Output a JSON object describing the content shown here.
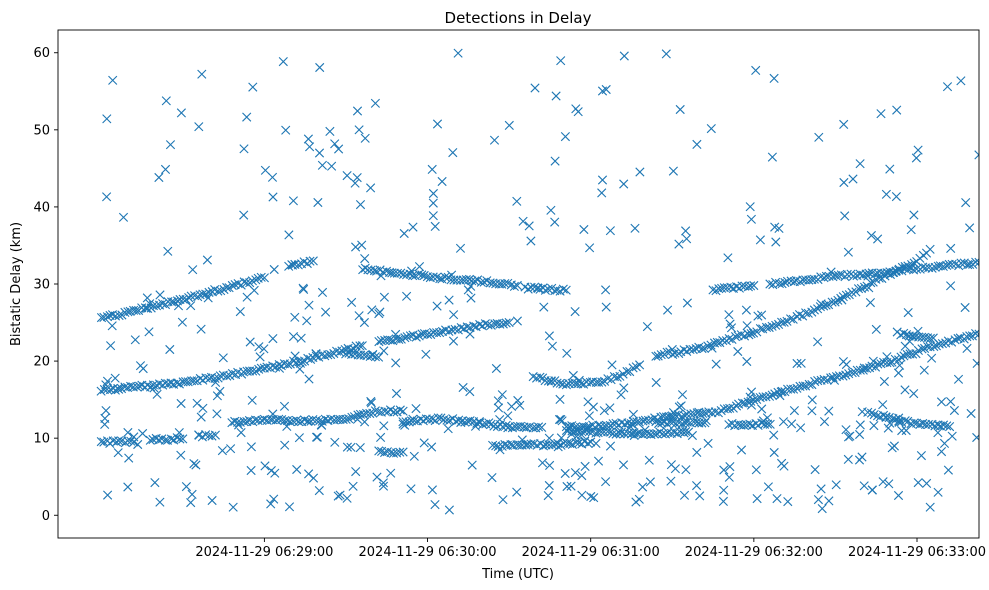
{
  "chart_data": {
    "type": "scatter",
    "title": "Detections in Delay",
    "xlabel": "Time (UTC)",
    "ylabel": "Bistatic Delay (km)",
    "marker": "x",
    "color": "#1f77b4",
    "x_unit": "minutes after 2024-11-29 06:28:00 UTC",
    "xlim": [
      -0.265,
      5.38
    ],
    "ylim": [
      -2.95,
      62.95
    ],
    "x_ticks": [
      {
        "value": 1,
        "label": "2024-11-29 06:29:00"
      },
      {
        "value": 2,
        "label": "2024-11-29 06:30:00"
      },
      {
        "value": 3,
        "label": "2024-11-29 06:31:00"
      },
      {
        "value": 4,
        "label": "2024-11-29 06:32:00"
      },
      {
        "value": 5,
        "label": "2024-11-29 06:33:00"
      }
    ],
    "y_ticks": [
      0,
      10,
      20,
      30,
      40,
      50,
      60
    ],
    "tracks": [
      {
        "name": "track-a",
        "points": [
          [
            0,
            25.5
          ],
          [
            0.5,
            28.0
          ],
          [
            1.0,
            30.8
          ]
        ]
      },
      {
        "name": "track-b",
        "points": [
          [
            1.15,
            32.3
          ],
          [
            1.3,
            33.0
          ]
        ]
      },
      {
        "name": "track-c",
        "points": [
          [
            1.6,
            32.0
          ],
          [
            2.0,
            31.0
          ],
          [
            2.4,
            30.2
          ],
          [
            2.55,
            29.8
          ]
        ]
      },
      {
        "name": "track-d",
        "points": [
          [
            2.6,
            29.5
          ],
          [
            2.85,
            29.2
          ]
        ]
      },
      {
        "name": "track-e",
        "points": [
          [
            0,
            16.2
          ],
          [
            0.5,
            17.2
          ],
          [
            1.0,
            19.0
          ],
          [
            1.3,
            20.4
          ],
          [
            1.6,
            22.0
          ]
        ]
      },
      {
        "name": "track-f",
        "points": [
          [
            1.5,
            21.0
          ],
          [
            1.7,
            20.5
          ]
        ]
      },
      {
        "name": "track-g",
        "points": [
          [
            1.7,
            22.5
          ],
          [
            2.0,
            23.5
          ],
          [
            2.3,
            24.6
          ],
          [
            2.5,
            25.0
          ]
        ]
      },
      {
        "name": "track-h",
        "points": [
          [
            2.65,
            18.0
          ],
          [
            2.85,
            17.0
          ],
          [
            3.05,
            17.2
          ],
          [
            3.2,
            18.3
          ],
          [
            3.3,
            19.5
          ]
        ]
      },
      {
        "name": "track-i",
        "points": [
          [
            3.5,
            21.0
          ],
          [
            3.7,
            21.8
          ],
          [
            4.0,
            23.8
          ],
          [
            4.3,
            26.0
          ],
          [
            4.55,
            28.3
          ],
          [
            4.75,
            30.5
          ],
          [
            5.0,
            33.0
          ],
          [
            5.08,
            34.5
          ]
        ]
      },
      {
        "name": "track-j",
        "points": [
          [
            3.75,
            29.2
          ],
          [
            4.0,
            29.8
          ]
        ]
      },
      {
        "name": "track-k",
        "points": [
          [
            4.1,
            30.0
          ],
          [
            4.5,
            31.0
          ],
          [
            4.8,
            31.5
          ],
          [
            5.0,
            32.0
          ],
          [
            5.38,
            32.8
          ]
        ]
      },
      {
        "name": "track-l",
        "points": [
          [
            0,
            9.5
          ],
          [
            0.2,
            9.5
          ]
        ]
      },
      {
        "name": "track-m",
        "points": [
          [
            0.3,
            9.9
          ],
          [
            0.5,
            9.9
          ]
        ]
      },
      {
        "name": "track-n",
        "points": [
          [
            0.6,
            10.3
          ],
          [
            0.7,
            10.4
          ]
        ]
      },
      {
        "name": "track-o",
        "points": [
          [
            0.8,
            12.0
          ],
          [
            1.0,
            12.3
          ],
          [
            1.3,
            12.3
          ],
          [
            1.5,
            12.5
          ],
          [
            1.7,
            13.5
          ],
          [
            1.85,
            13.5
          ]
        ]
      },
      {
        "name": "track-p",
        "points": [
          [
            1.85,
            12.2
          ],
          [
            2.1,
            12.5
          ],
          [
            2.3,
            12.0
          ],
          [
            2.5,
            11.5
          ],
          [
            2.7,
            11.4
          ]
        ]
      },
      {
        "name": "track-q",
        "points": [
          [
            1.7,
            8.2
          ],
          [
            1.85,
            8.2
          ]
        ]
      },
      {
        "name": "track-r",
        "points": [
          [
            2.4,
            9.0
          ],
          [
            2.8,
            9.2
          ],
          [
            3.0,
            9.5
          ]
        ]
      },
      {
        "name": "track-s",
        "points": [
          [
            2.85,
            11.5
          ],
          [
            3.1,
            11.6
          ],
          [
            3.5,
            12.8
          ],
          [
            3.8,
            13.5
          ],
          [
            4.0,
            15.0
          ],
          [
            4.3,
            16.8
          ],
          [
            4.6,
            18.5
          ],
          [
            4.85,
            20.0
          ],
          [
            5.1,
            22.0
          ],
          [
            5.38,
            23.5
          ]
        ]
      },
      {
        "name": "track-t",
        "points": [
          [
            3.4,
            12.0
          ],
          [
            3.7,
            12.0
          ]
        ]
      },
      {
        "name": "track-u",
        "points": [
          [
            3.85,
            11.8
          ],
          [
            4.1,
            11.8
          ]
        ]
      },
      {
        "name": "track-v",
        "points": [
          [
            4.7,
            13.3
          ],
          [
            5.0,
            11.8
          ],
          [
            5.2,
            11.5
          ]
        ]
      },
      {
        "name": "track-w",
        "points": [
          [
            3.4,
            20.5
          ],
          [
            3.5,
            21.5
          ]
        ]
      },
      {
        "name": "track-x",
        "points": [
          [
            2.85,
            11.0
          ],
          [
            3.3,
            10.5
          ],
          [
            3.6,
            10.8
          ]
        ]
      },
      {
        "name": "track-y",
        "points": [
          [
            4.9,
            23.5
          ],
          [
            5.1,
            23.0
          ]
        ]
      }
    ],
    "clutter": {
      "count": 520,
      "x_range": [
        0,
        5.38
      ],
      "y_range": [
        0.5,
        60
      ]
    }
  }
}
